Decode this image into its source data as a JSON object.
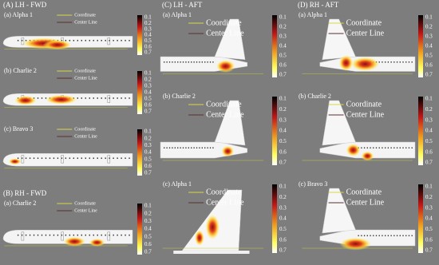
{
  "legend": {
    "coordinate": "Coordinate",
    "center_line": "Center Line"
  },
  "colorbar_ticks": [
    "0.1",
    "0.2",
    "0.3",
    "0.4",
    "0.5",
    "0.6",
    "0.7"
  ],
  "sections": [
    {
      "title": "(A) LH - FWD",
      "panels": [
        {
          "label": "(a) Alpha 1"
        },
        {
          "label": "(b) Charlie 2"
        },
        {
          "label": "(c) Bravo 3"
        }
      ]
    },
    {
      "title": "(B) RH - FWD",
      "panels": [
        {
          "label": "(a) Charlie 2"
        }
      ]
    },
    {
      "title": "(C) LH - AFT",
      "panels": [
        {
          "label": "(a) Alpha 1"
        },
        {
          "label": "(b) Charlie 2"
        },
        {
          "label": "(c) Alpha 1"
        }
      ]
    },
    {
      "title": "(D) RH - AFT",
      "panels": [
        {
          "label": "(a) Alpha 1"
        },
        {
          "label": "(b) Charlie 2"
        },
        {
          "label": "(c) Bravo 3"
        }
      ]
    }
  ]
}
